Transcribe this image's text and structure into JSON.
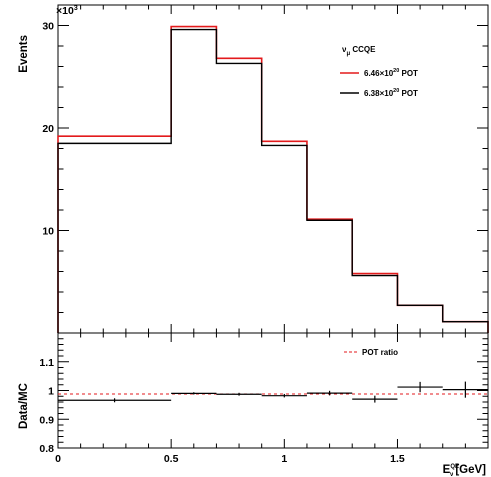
{
  "chart_data": [
    {
      "type": "step",
      "name": "events-panel",
      "y_multiplier_label": "×10",
      "y_multiplier_exp": "3",
      "ylabel": "Events",
      "xlim": [
        0,
        1.9
      ],
      "ylim": [
        0,
        32000
      ],
      "yticks": [
        10,
        20,
        30
      ],
      "bin_edges": [
        0,
        0.5,
        0.7,
        0.9,
        1.1,
        1.3,
        1.5,
        1.7,
        1.9
      ],
      "legend_title_main": "ν",
      "legend_title_sub": "μ",
      "legend_title_rest": " CCQE",
      "series": [
        {
          "name_prefix": "6.46×10",
          "name_exp": "20",
          "name_suffix": " POT",
          "color": "#e31a1c",
          "values": [
            19200,
            29900,
            26800,
            18700,
            11100,
            5800,
            2700,
            1100
          ]
        },
        {
          "name_prefix": "6.38×10",
          "name_exp": "20",
          "name_suffix": " POT",
          "color": "#000000",
          "values": [
            18500,
            29600,
            26300,
            18300,
            11000,
            5600,
            2700,
            1100
          ]
        }
      ]
    },
    {
      "type": "ratio",
      "name": "ratio-panel",
      "ylabel": "Data/MC",
      "xlabel_main": "E",
      "xlabel_sub": "ν",
      "xlabel_sup": "QE",
      "xlabel_unit": "[GeV]",
      "xlim": [
        0,
        1.9
      ],
      "ylim": [
        0.8,
        1.2
      ],
      "xticks": [
        "0",
        "0.5",
        "1",
        "1.5"
      ],
      "xtick_values": [
        0,
        0.5,
        1,
        1.5
      ],
      "yticks": [
        "0.8",
        "0.9",
        "1",
        "1.1"
      ],
      "ytick_values": [
        0.8,
        0.9,
        1.0,
        1.1
      ],
      "reference_label": "POT ratio",
      "reference_value": 0.988,
      "reference_color": "#e31a1c",
      "points": [
        {
          "x0": 0.0,
          "x1": 0.5,
          "y": 0.966,
          "err": 0.007
        },
        {
          "x0": 0.5,
          "x1": 0.7,
          "y": 0.99,
          "err": 0.004
        },
        {
          "x0": 0.7,
          "x1": 0.9,
          "y": 0.987,
          "err": 0.005
        },
        {
          "x0": 0.9,
          "x1": 1.1,
          "y": 0.982,
          "err": 0.006
        },
        {
          "x0": 1.1,
          "x1": 1.3,
          "y": 0.991,
          "err": 0.008
        },
        {
          "x0": 1.3,
          "x1": 1.5,
          "y": 0.97,
          "err": 0.012
        },
        {
          "x0": 1.5,
          "x1": 1.7,
          "y": 1.012,
          "err": 0.018
        },
        {
          "x0": 1.7,
          "x1": 1.9,
          "y": 1.003,
          "err": 0.028
        }
      ]
    }
  ]
}
